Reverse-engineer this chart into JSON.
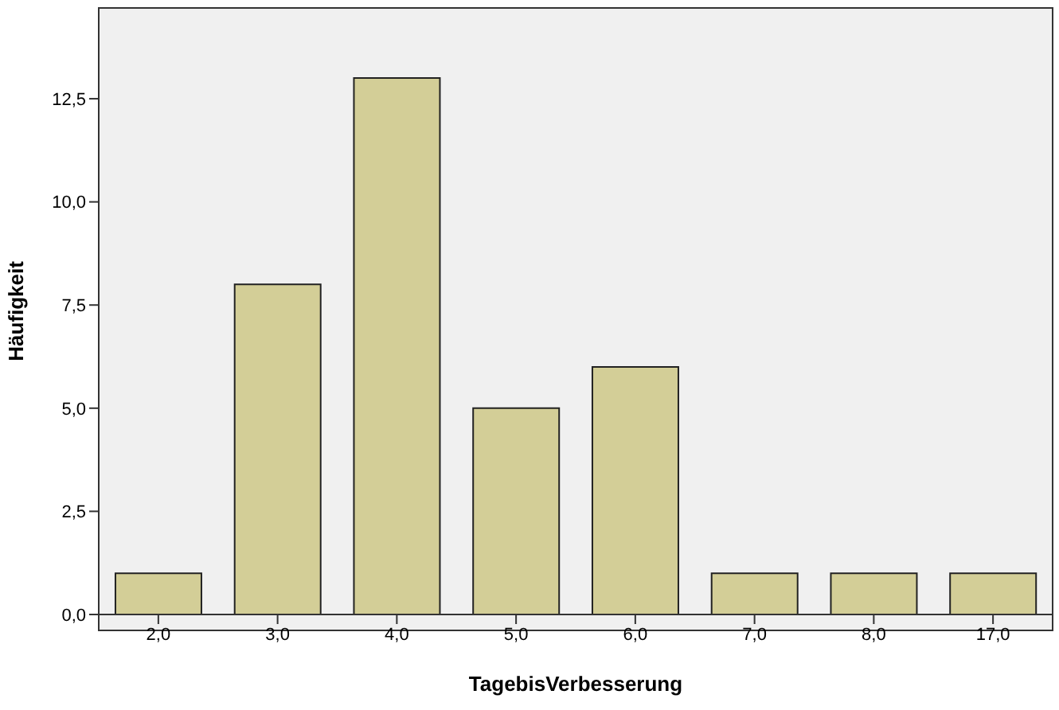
{
  "chart_data": {
    "type": "bar",
    "xlabel": "TagebisVerbesserung",
    "ylabel": "Häufigkeit",
    "categories": [
      "2,0",
      "3,0",
      "4,0",
      "5,0",
      "6,0",
      "7,0",
      "8,0",
      "17,0"
    ],
    "values": [
      1,
      8,
      13,
      5,
      6,
      1,
      1,
      1
    ],
    "color": "#d3ce97",
    "ylim": [
      0,
      14.7
    ],
    "yticks": [
      {
        "value": 0,
        "label": "0,0"
      },
      {
        "value": 2.5,
        "label": "2,5"
      },
      {
        "value": 5,
        "label": "5,0"
      },
      {
        "value": 7.5,
        "label": "7,5"
      },
      {
        "value": 10,
        "label": "10,0"
      },
      {
        "value": 12.5,
        "label": "12,5"
      }
    ]
  }
}
